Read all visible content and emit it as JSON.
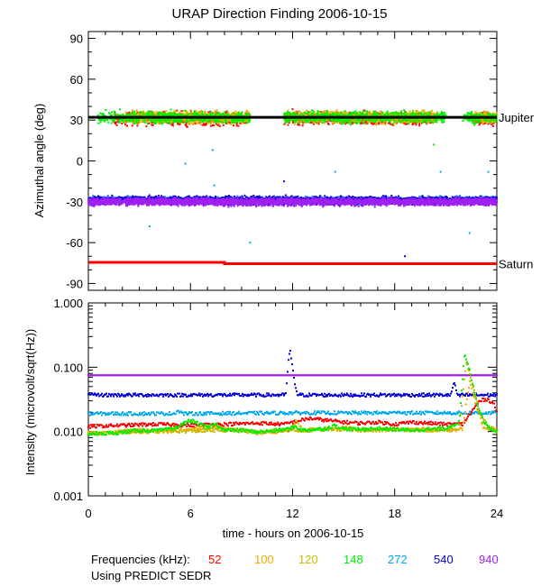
{
  "chart_data": [
    {
      "type": "scatter",
      "title": "URAP Direction Finding  2006-10-15",
      "ylabel": "Azimuthal angle (deg)",
      "xlim": [
        0,
        24
      ],
      "ylim": [
        -95,
        95
      ],
      "yticks": [
        90,
        60,
        30,
        0,
        -30,
        -60,
        -90
      ],
      "reference_lines": [
        {
          "name": "Jupiter",
          "color": "#000000",
          "values": [
            [
              0,
              32
            ],
            [
              24,
              32
            ]
          ]
        },
        {
          "name": "Saturn",
          "color": "#ff0000",
          "values": [
            [
              0,
              -74.5
            ],
            [
              8,
              -74.5
            ],
            [
              8,
              -75.5
            ],
            [
              24,
              -75.5
            ]
          ]
        }
      ],
      "series": [
        {
          "name": "52",
          "color": "#ff0000",
          "clusters": [
            {
              "center": 31,
              "spread": 7,
              "ranges": [
                [
                  1.5,
                  9.5
                ],
                [
                  11.5,
                  20.5
                ],
                [
                  22.5,
                  24
                ]
              ]
            }
          ]
        },
        {
          "name": "100",
          "color": "#ffa500",
          "clusters": [
            {
              "center": 32,
              "spread": 6,
              "ranges": [
                [
                  2,
                  9.5
                ],
                [
                  11.5,
                  20.5
                ],
                [
                  22.5,
                  24
                ]
              ]
            }
          ]
        },
        {
          "name": "120",
          "color": "#ccbb00",
          "clusters": [
            {
              "center": 32,
              "spread": 6,
              "ranges": [
                [
                  2.5,
                  9.5
                ],
                [
                  12,
                  20.5
                ],
                [
                  22.5,
                  24
                ]
              ]
            }
          ]
        },
        {
          "name": "148",
          "color": "#00ee00",
          "clusters": [
            {
              "center": 32,
              "spread": 6,
              "ranges": [
                [
                  0.5,
                  9.5
                ],
                [
                  11.5,
                  21
                ],
                [
                  22,
                  24
                ]
              ]
            }
          ]
        },
        {
          "name": "272",
          "color": "#00aaee",
          "clusters": [
            {
              "center": -29,
              "spread": 4,
              "ranges": [
                [
                  0,
                  24
                ]
              ]
            }
          ]
        },
        {
          "name": "540",
          "color": "#0000dd",
          "clusters": [
            {
              "center": -29,
              "spread": 4,
              "ranges": [
                [
                  0,
                  24
                ]
              ]
            }
          ]
        },
        {
          "name": "940",
          "color": "#a020f0",
          "clusters": [
            {
              "center": -30,
              "spread": 4,
              "ranges": [
                [
                  0,
                  24
                ]
              ]
            }
          ]
        }
      ],
      "outliers": [
        {
          "x": 3.6,
          "y": -48,
          "color": "#00aaee"
        },
        {
          "x": 5.7,
          "y": -2,
          "color": "#00aaee"
        },
        {
          "x": 7.3,
          "y": 8,
          "color": "#00aaee"
        },
        {
          "x": 7.4,
          "y": -18,
          "color": "#00aaee"
        },
        {
          "x": 11.5,
          "y": -15,
          "color": "#0000dd"
        },
        {
          "x": 14.5,
          "y": -8,
          "color": "#00aaee"
        },
        {
          "x": 20.7,
          "y": -8,
          "color": "#00aaee"
        },
        {
          "x": 22.4,
          "y": -53,
          "color": "#00aaee"
        },
        {
          "x": 23.5,
          "y": -8,
          "color": "#00aaee"
        },
        {
          "x": 18.6,
          "y": -70,
          "color": "#0000dd"
        },
        {
          "x": 9.5,
          "y": -60,
          "color": "#00aaee"
        },
        {
          "x": 12.0,
          "y": 38,
          "color": "#ff0000"
        },
        {
          "x": 20.3,
          "y": 12,
          "color": "#00ee00"
        }
      ]
    },
    {
      "type": "line",
      "ylabel": "Intensity (microvolt/sqrt(Hz))",
      "xlabel": "time - hours on 2006-10-15",
      "xlim": [
        0,
        24
      ],
      "xticks": [
        0,
        6,
        12,
        18,
        24
      ],
      "ylim": [
        0.001,
        1.0
      ],
      "yscale": "log",
      "ytick_labels": [
        "1.000",
        "0.100",
        "0.010",
        "0.001"
      ],
      "yticks": [
        1.0,
        0.1,
        0.01,
        0.001
      ],
      "series": [
        {
          "name": "940",
          "color": "#a020f0",
          "x": [
            0,
            24
          ],
          "y": [
            0.075,
            0.075
          ]
        },
        {
          "name": "540",
          "color": "#0000dd",
          "x": [
            0,
            11.6,
            11.75,
            11.85,
            12.1,
            12.3,
            21.3,
            21.5,
            21.7,
            21.9,
            22.2,
            24
          ],
          "y": [
            0.037,
            0.037,
            0.12,
            0.19,
            0.06,
            0.037,
            0.037,
            0.06,
            0.035,
            0.037,
            0.037,
            0.037
          ]
        },
        {
          "name": "272",
          "color": "#00aaee",
          "x": [
            0,
            5,
            5.3,
            5.6,
            12,
            18,
            18.2,
            18.4,
            24
          ],
          "y": [
            0.019,
            0.019,
            0.021,
            0.019,
            0.0195,
            0.0195,
            0.021,
            0.0195,
            0.0195
          ]
        },
        {
          "name": "52",
          "color": "#ff0000",
          "x": [
            0,
            2,
            4,
            6,
            8,
            10,
            11.5,
            12,
            12.5,
            13,
            14,
            15,
            16,
            17,
            18,
            19,
            20,
            21,
            22,
            22.5,
            23,
            23.4,
            23.8,
            24
          ],
          "y": [
            0.012,
            0.0125,
            0.013,
            0.0125,
            0.013,
            0.0135,
            0.013,
            0.014,
            0.015,
            0.016,
            0.015,
            0.014,
            0.0135,
            0.014,
            0.013,
            0.014,
            0.0135,
            0.013,
            0.013,
            0.02,
            0.03,
            0.032,
            0.028,
            0.02
          ]
        },
        {
          "name": "100",
          "color": "#ffa500",
          "x": [
            0,
            1,
            2,
            3,
            4,
            5,
            6,
            7,
            8,
            9,
            10,
            11,
            12,
            12.3,
            13,
            14,
            15,
            16,
            17,
            18,
            19,
            20,
            21,
            22,
            22.4,
            22.8,
            23.2,
            24
          ],
          "y": [
            0.0095,
            0.0095,
            0.01,
            0.0105,
            0.01,
            0.011,
            0.0105,
            0.012,
            0.011,
            0.0105,
            0.0095,
            0.01,
            0.011,
            0.01,
            0.0105,
            0.011,
            0.0115,
            0.011,
            0.0105,
            0.011,
            0.0105,
            0.011,
            0.0105,
            0.011,
            0.06,
            0.025,
            0.012,
            0.01
          ]
        },
        {
          "name": "120",
          "color": "#ccbb00",
          "x": [
            0,
            2,
            4,
            6,
            8,
            10,
            11.9,
            12.2,
            12.6,
            14,
            16,
            18,
            20,
            21.8,
            22.2,
            22.6,
            23,
            23.5,
            24
          ],
          "y": [
            0.0093,
            0.0098,
            0.01,
            0.0102,
            0.0105,
            0.0098,
            0.0105,
            0.015,
            0.0105,
            0.011,
            0.0105,
            0.0108,
            0.0105,
            0.011,
            0.12,
            0.05,
            0.02,
            0.012,
            0.0102
          ]
        },
        {
          "name": "148",
          "color": "#00ee00",
          "x": [
            0,
            1,
            2,
            3,
            4,
            5,
            6,
            7,
            7.5,
            8,
            9,
            10,
            11,
            11.8,
            12.2,
            12.5,
            13,
            14,
            14.5,
            15,
            16,
            17,
            18,
            19,
            20,
            21,
            21.8,
            22.1,
            22.4,
            22.8,
            23.2,
            23.6,
            24
          ],
          "y": [
            0.0092,
            0.0093,
            0.0097,
            0.0105,
            0.0103,
            0.011,
            0.015,
            0.0115,
            0.013,
            0.0105,
            0.0105,
            0.0098,
            0.0104,
            0.011,
            0.012,
            0.0105,
            0.0106,
            0.0112,
            0.0125,
            0.011,
            0.0108,
            0.0112,
            0.0108,
            0.0105,
            0.0108,
            0.0112,
            0.014,
            0.16,
            0.09,
            0.03,
            0.015,
            0.011,
            0.0103
          ]
        }
      ]
    }
  ],
  "legend": {
    "caption": "Frequencies (kHz):",
    "items": [
      {
        "label": "52",
        "color": "#ff0000"
      },
      {
        "label": "100",
        "color": "#ffa500"
      },
      {
        "label": "120",
        "color": "#ccbb00"
      },
      {
        "label": "148",
        "color": "#00ee00"
      },
      {
        "label": "272",
        "color": "#00aaee"
      },
      {
        "label": "540",
        "color": "#0000dd"
      },
      {
        "label": "940",
        "color": "#a020f0"
      }
    ]
  },
  "footer": {
    "note": "Using PREDICT SEDR"
  }
}
